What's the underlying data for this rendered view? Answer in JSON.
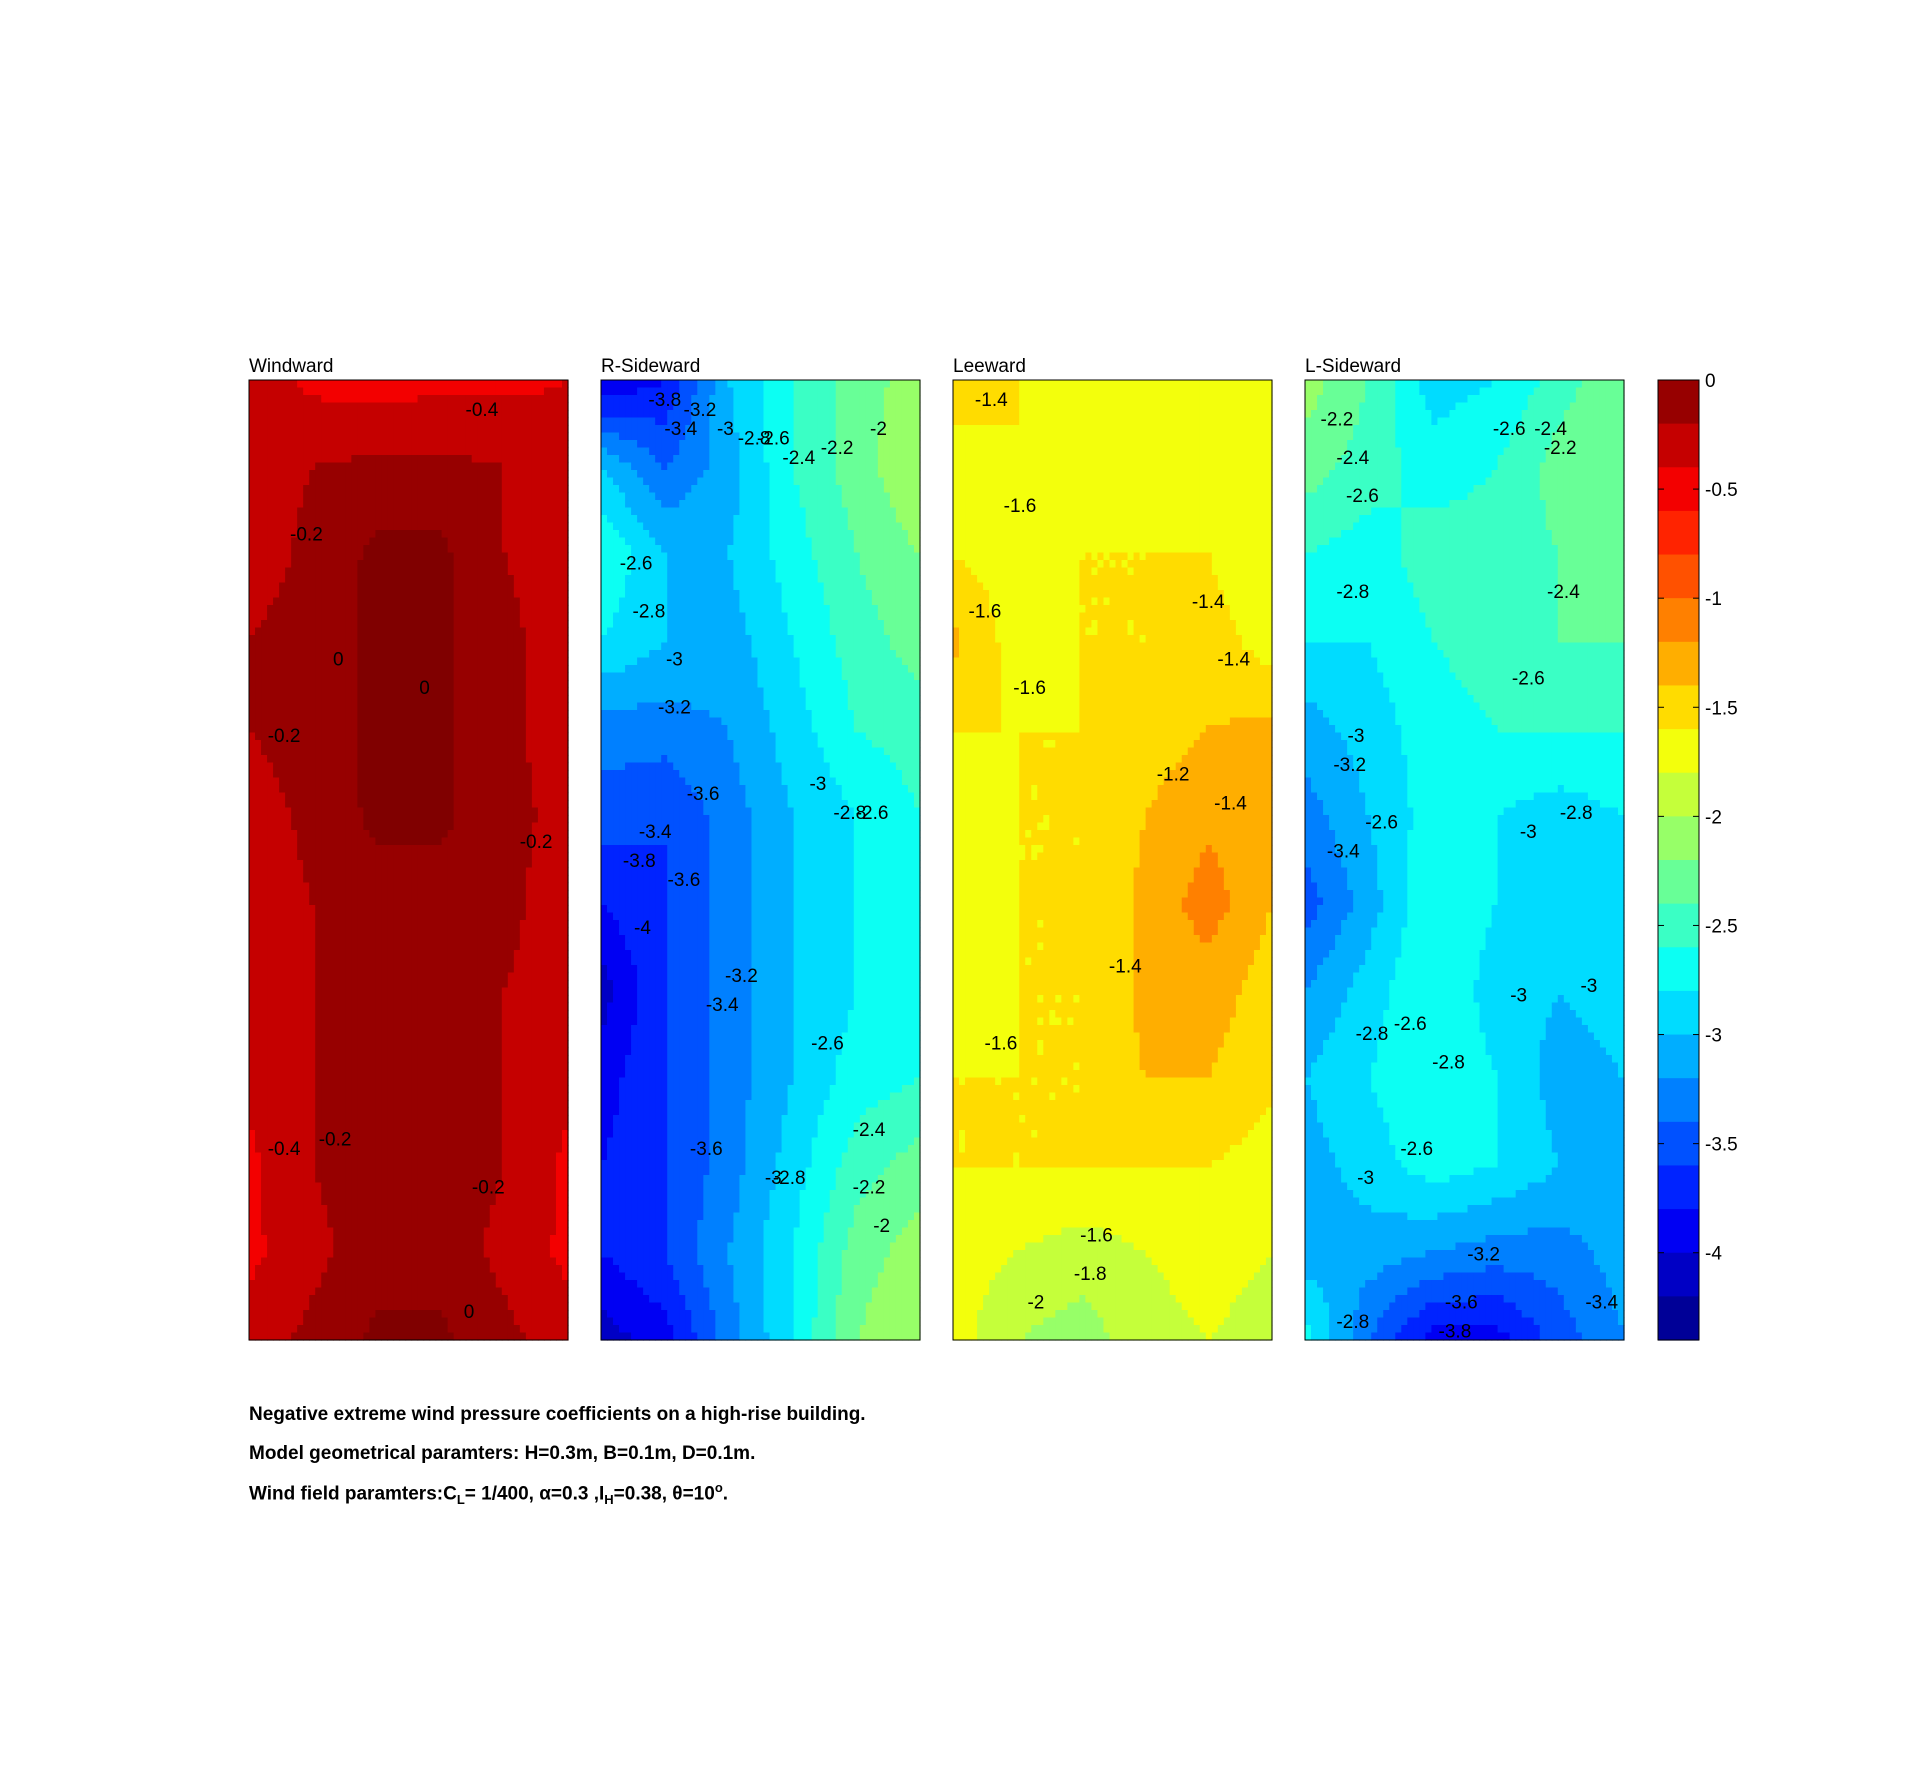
{
  "chart_data": {
    "type": "heatmap",
    "title": "",
    "colorbar": {
      "range": [
        -4.4,
        0
      ],
      "ticks": [
        0,
        -0.5,
        -1,
        -1.5,
        -2,
        -2.5,
        -3,
        -3.5,
        -4
      ],
      "tick_labels": [
        "0",
        "-0.5",
        "-1",
        "-1.5",
        "-2",
        "-2.5",
        "-3",
        "-3.5",
        "-4"
      ],
      "colormap": "jet"
    },
    "panels": [
      {
        "name": "Windward",
        "grid_rows_top_to_bottom": [
          [
            -0.3,
            -0.45,
            -0.5,
            -0.45,
            -0.45,
            -0.4
          ],
          [
            -0.3,
            -0.2,
            -0.15,
            -0.15,
            -0.2,
            -0.3
          ],
          [
            -0.3,
            -0.15,
            0.05,
            0.05,
            -0.2,
            -0.3
          ],
          [
            -0.2,
            -0.1,
            0.05,
            0.05,
            -0.15,
            -0.3
          ],
          [
            -0.2,
            -0.1,
            0.05,
            0.05,
            -0.15,
            -0.3
          ],
          [
            -0.3,
            -0.15,
            0.05,
            0.05,
            -0.15,
            -0.25
          ],
          [
            -0.3,
            -0.2,
            -0.1,
            -0.1,
            -0.15,
            -0.3
          ],
          [
            -0.3,
            -0.2,
            -0.1,
            -0.1,
            -0.2,
            -0.3
          ],
          [
            -0.35,
            -0.2,
            -0.1,
            -0.1,
            -0.2,
            -0.35
          ],
          [
            -0.45,
            -0.2,
            -0.1,
            -0.1,
            -0.2,
            -0.45
          ],
          [
            -0.45,
            -0.25,
            -0.1,
            -0.1,
            -0.25,
            -0.45
          ],
          [
            -0.3,
            -0.15,
            0.05,
            0.05,
            -0.15,
            -0.3
          ]
        ],
        "contour_labels": [
          "-0.4",
          "-0.2",
          "0",
          "0",
          "-0.2",
          "-0.2",
          "-0.4",
          "-0.2",
          "-0.2",
          "0"
        ]
      },
      {
        "name": "R-Sideward",
        "grid_rows_top_to_bottom": [
          [
            -4.0,
            -3.8,
            -3.0,
            -2.6,
            -2.3,
            -2.1
          ],
          [
            -3.0,
            -3.4,
            -3.1,
            -2.6,
            -2.3,
            -2.0
          ],
          [
            -2.6,
            -3.0,
            -3.0,
            -2.7,
            -2.4,
            -2.2
          ],
          [
            -2.8,
            -3.0,
            -3.1,
            -2.8,
            -2.5,
            -2.3
          ],
          [
            -3.3,
            -3.3,
            -3.2,
            -2.9,
            -2.6,
            -2.5
          ],
          [
            -3.5,
            -3.6,
            -3.3,
            -3.0,
            -2.8,
            -2.6
          ],
          [
            -3.8,
            -3.6,
            -3.3,
            -3.0,
            -2.8,
            -2.6
          ],
          [
            -4.1,
            -3.6,
            -3.3,
            -3.0,
            -2.8,
            -2.7
          ],
          [
            -3.9,
            -3.6,
            -3.3,
            -3.0,
            -2.7,
            -2.6
          ],
          [
            -3.8,
            -3.6,
            -3.3,
            -2.9,
            -2.5,
            -2.3
          ],
          [
            -3.8,
            -3.6,
            -3.2,
            -2.8,
            -2.3,
            -2.1
          ],
          [
            -4.1,
            -3.9,
            -3.3,
            -2.8,
            -2.2,
            -2.0
          ]
        ],
        "contour_labels": [
          "-3.8",
          "-3.2",
          "-3.4",
          "-3",
          "-2.8",
          "-2.6",
          "-2.4",
          "-2.2",
          "-2",
          "-2.6",
          "-2.8",
          "-3",
          "-3.2",
          "-3.6",
          "-3",
          "-2.8",
          "-2.6",
          "-3.4",
          "-3.8",
          "-3.6",
          "-4",
          "-3.2",
          "-3.4",
          "-2.6",
          "-3.6",
          "-2.4",
          "-3",
          "-2.8",
          "-2.2",
          "-2"
        ]
      },
      {
        "name": "Leeward",
        "grid_rows_top_to_bottom": [
          [
            -1.4,
            -1.6,
            -1.7,
            -1.7,
            -1.6,
            -1.7
          ],
          [
            -1.8,
            -1.6,
            -1.6,
            -1.7,
            -1.7,
            -1.8
          ],
          [
            -1.6,
            -1.7,
            -1.6,
            -1.6,
            -1.6,
            -1.8
          ],
          [
            -1.35,
            -1.7,
            -1.6,
            -1.6,
            -1.5,
            -1.7
          ],
          [
            -1.6,
            -1.6,
            -1.6,
            -1.5,
            -1.4,
            -1.35
          ],
          [
            -1.8,
            -1.6,
            -1.6,
            -1.4,
            -1.25,
            -1.3
          ],
          [
            -1.8,
            -1.6,
            -1.6,
            -1.35,
            -1.1,
            -1.4
          ],
          [
            -1.7,
            -1.6,
            -1.6,
            -1.35,
            -1.3,
            -1.5
          ],
          [
            -1.6,
            -1.6,
            -1.6,
            -1.4,
            -1.4,
            -1.55
          ],
          [
            -1.6,
            -1.6,
            -1.6,
            -1.6,
            -1.6,
            -1.7
          ],
          [
            -1.7,
            -1.8,
            -1.9,
            -1.8,
            -1.7,
            -1.8
          ],
          [
            -1.7,
            -2.0,
            -2.1,
            -1.9,
            -1.8,
            -1.9
          ]
        ],
        "contour_labels": [
          "-1.4",
          "-1.6",
          "-1.6",
          "-1.4",
          "-1.4",
          "-1.6",
          "-1.2",
          "-1.4",
          "-1.4",
          "-1.6",
          "-1.6",
          "-1.8",
          "-2"
        ]
      },
      {
        "name": "L-Sideward",
        "grid_rows_top_to_bottom": [
          [
            -2.1,
            -2.4,
            -2.9,
            -2.8,
            -2.5,
            -2.2
          ],
          [
            -2.3,
            -2.5,
            -2.7,
            -2.6,
            -2.3,
            -2.2
          ],
          [
            -2.6,
            -2.7,
            -2.5,
            -2.5,
            -2.4,
            -2.3
          ],
          [
            -2.8,
            -2.8,
            -2.6,
            -2.5,
            -2.4,
            -2.4
          ],
          [
            -3.1,
            -2.9,
            -2.7,
            -2.6,
            -2.6,
            -2.6
          ],
          [
            -3.3,
            -3.0,
            -2.7,
            -2.8,
            -2.9,
            -2.8
          ],
          [
            -3.5,
            -3.1,
            -2.6,
            -2.8,
            -3.0,
            -2.9
          ],
          [
            -3.2,
            -2.9,
            -2.6,
            -2.9,
            -3.0,
            -2.9
          ],
          [
            -3.0,
            -2.8,
            -2.6,
            -2.8,
            -3.1,
            -3.0
          ],
          [
            -3.1,
            -2.9,
            -2.7,
            -2.8,
            -3.0,
            -3.0
          ],
          [
            -3.1,
            -3.1,
            -3.2,
            -3.3,
            -3.3,
            -3.1
          ],
          [
            -2.7,
            -3.4,
            -3.9,
            -3.9,
            -3.5,
            -3.2
          ]
        ],
        "contour_labels": [
          "-2.2",
          "-2.4",
          "-2.6",
          "-2.6",
          "-2.4",
          "-2.2",
          "-2.8",
          "-2.4",
          "-2.6",
          "-3",
          "-3.2",
          "-2.6",
          "-3",
          "-2.8",
          "-3.4",
          "-3",
          "-2.8",
          "-2.6",
          "-3",
          "-2.8",
          "-2.6",
          "-3",
          "-3.2",
          "-3.6",
          "-3.4",
          "-2.8",
          "-3.8"
        ]
      }
    ]
  },
  "caption": {
    "line1": "Negative extreme wind pressure coefficients on a high-rise building.",
    "line2": "Model geometrical paramters: H=0.3m, B=0.1m, D=0.1m.",
    "line3_prefix": "Wind field paramters:C",
    "line3_sub_l": "L",
    "line3_cl": "= 1/400, α=0.3 ,I",
    "line3_sub_h": "H",
    "line3_ih": "=0.38, θ=10",
    "line3_sup_o": "o",
    "line3_end": "."
  }
}
